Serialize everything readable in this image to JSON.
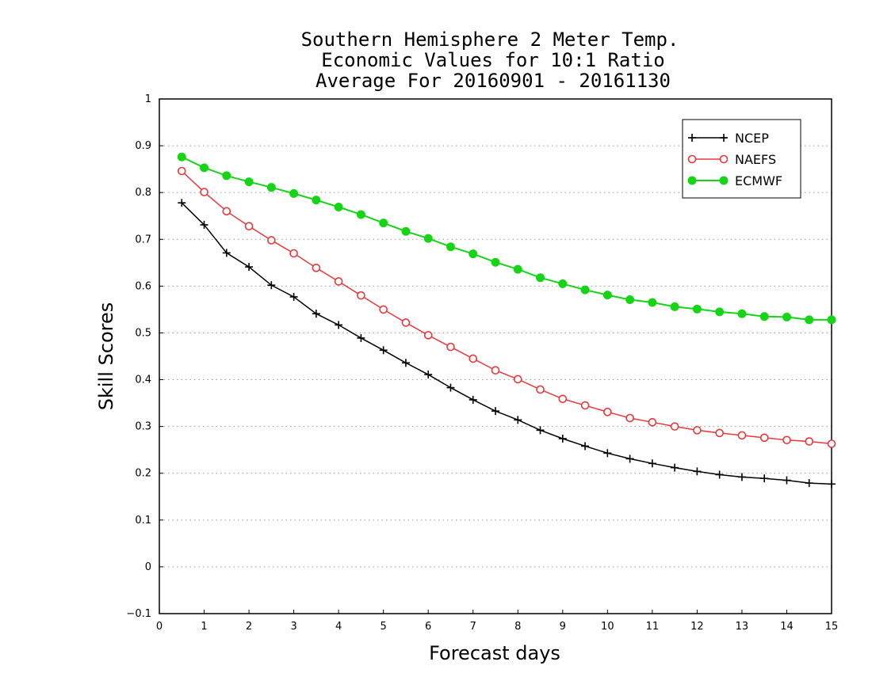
{
  "chart_data": {
    "type": "line",
    "title_lines": [
      "Southern Hemisphere 2 Meter Temp.",
      "Economic Values for 10:1 Ratio",
      "Average For 20160901 - 20161130"
    ],
    "xlabel": "Forecast days",
    "ylabel": "Skill Scores",
    "xlim": [
      0,
      15
    ],
    "ylim": [
      -0.1,
      1.0
    ],
    "x_ticks": [
      "0",
      "1",
      "2",
      "3",
      "4",
      "5",
      "6",
      "7",
      "8",
      "9",
      "10",
      "11",
      "12",
      "13",
      "14",
      "15"
    ],
    "y_ticks": [
      "−0.1",
      "0",
      "0.1",
      "0.2",
      "0.3",
      "0.4",
      "0.5",
      "0.6",
      "0.7",
      "0.8",
      "0.9",
      "1"
    ],
    "grid": "horizontal dotted",
    "legend_position": "top-right",
    "x": [
      0.5,
      1,
      1.5,
      2,
      2.5,
      3,
      3.5,
      4,
      4.5,
      5,
      5.5,
      6,
      6.5,
      7,
      7.5,
      8,
      8.5,
      9,
      9.5,
      10,
      10.5,
      11,
      11.5,
      12,
      12.5,
      13,
      13.5,
      14,
      14.5,
      15
    ],
    "series": [
      {
        "name": "NCEP",
        "color": "#000000",
        "marker": "plus",
        "values": [
          0.778,
          0.731,
          0.671,
          0.641,
          0.602,
          0.577,
          0.541,
          0.517,
          0.489,
          0.463,
          0.436,
          0.411,
          0.383,
          0.357,
          0.333,
          0.314,
          0.292,
          0.274,
          0.258,
          0.243,
          0.231,
          0.221,
          0.212,
          0.204,
          0.197,
          0.192,
          0.189,
          0.185,
          0.179,
          0.177
        ]
      },
      {
        "name": "NAEFS",
        "color": "#e8393d",
        "marker": "open-circle",
        "values": [
          0.846,
          0.801,
          0.76,
          0.728,
          0.698,
          0.67,
          0.639,
          0.61,
          0.58,
          0.55,
          0.522,
          0.495,
          0.47,
          0.445,
          0.42,
          0.401,
          0.379,
          0.359,
          0.345,
          0.331,
          0.318,
          0.309,
          0.3,
          0.292,
          0.286,
          0.281,
          0.276,
          0.271,
          0.268,
          0.263
        ]
      },
      {
        "name": "ECMWF",
        "color": "#16d416",
        "marker": "filled-circle",
        "values": [
          0.876,
          0.853,
          0.836,
          0.823,
          0.811,
          0.798,
          0.784,
          0.769,
          0.753,
          0.735,
          0.717,
          0.702,
          0.684,
          0.669,
          0.651,
          0.636,
          0.618,
          0.605,
          0.592,
          0.581,
          0.571,
          0.565,
          0.556,
          0.551,
          0.545,
          0.541,
          0.535,
          0.534,
          0.528,
          0.528
        ]
      }
    ]
  }
}
